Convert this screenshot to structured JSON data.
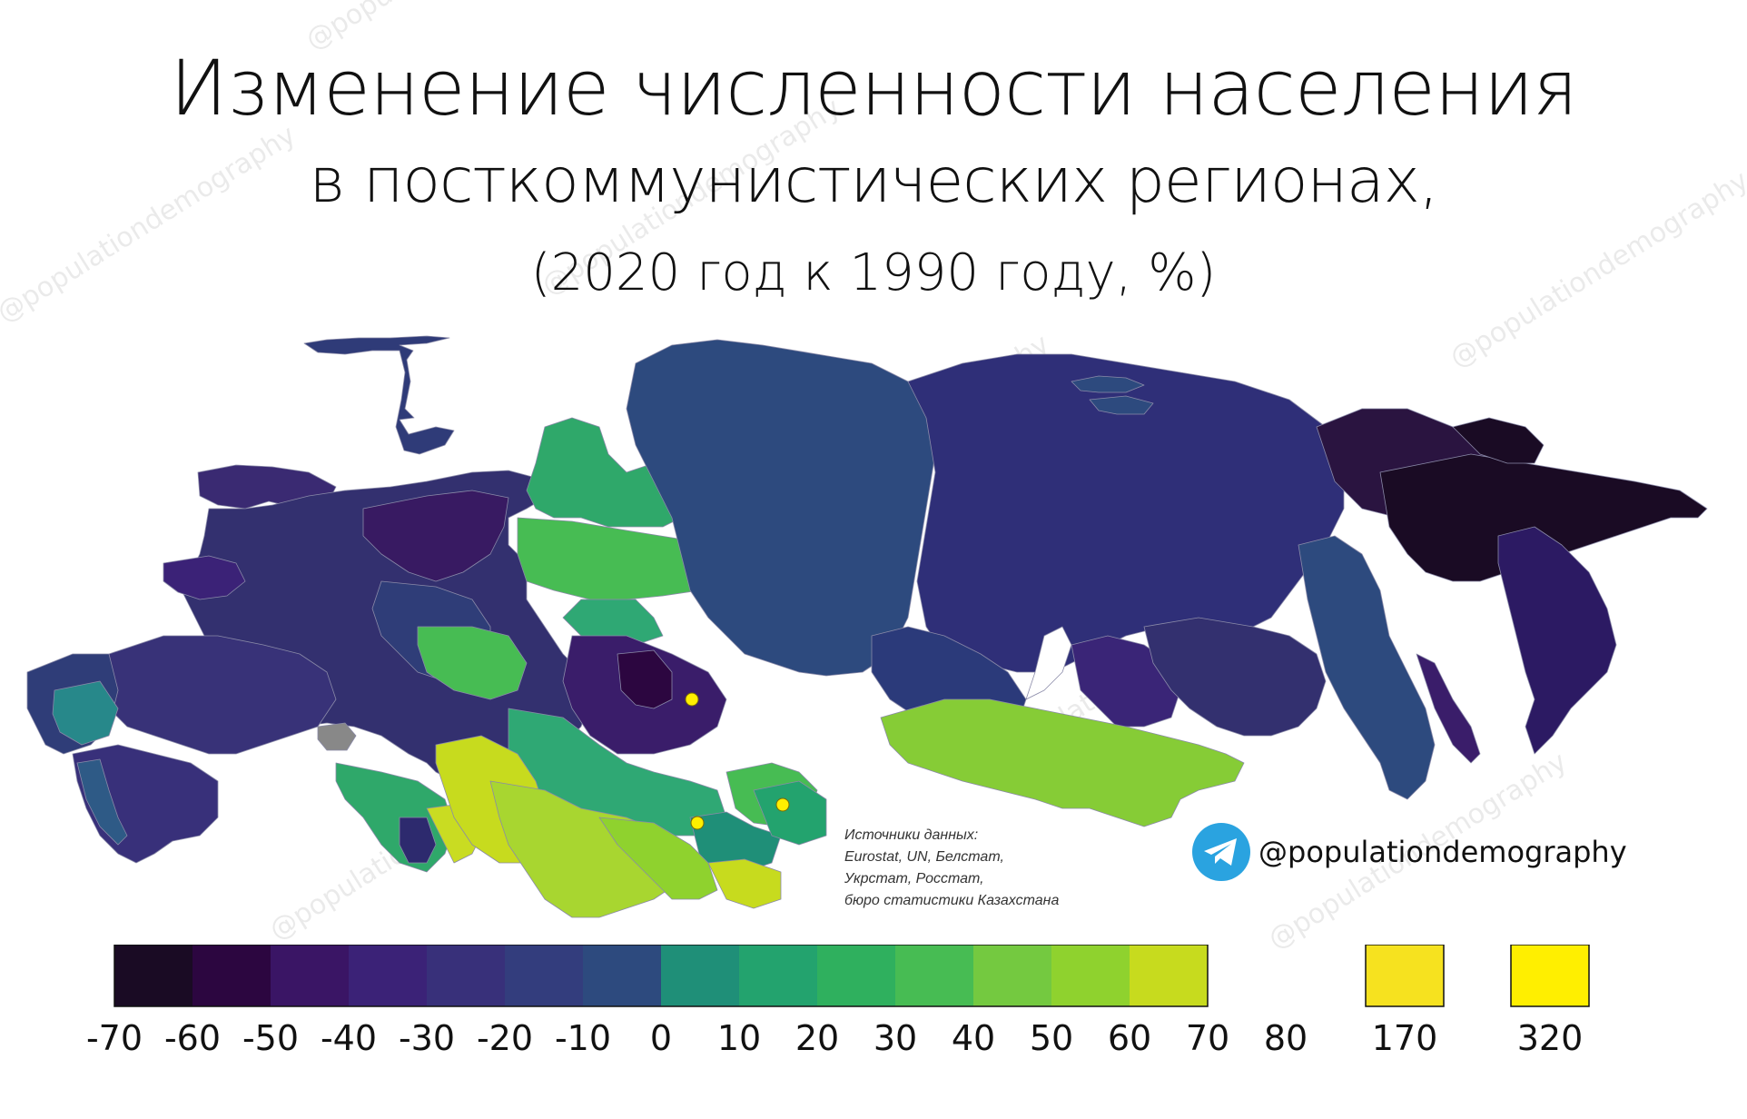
{
  "title": {
    "line1": "Изменение численности населения",
    "line2": "в посткоммунистических регионах,",
    "line3": "(2020 год к 1990 году, %)"
  },
  "sources": {
    "heading": "Источники данных:",
    "line1": "Eurostat, UN, Белстат,",
    "line2": "Укрстат, Росстат,",
    "line3": "бюро статистики Казахстана"
  },
  "brand": {
    "icon": "telegram-icon",
    "handle": "@populationdemography"
  },
  "watermark_text": "@populationdemography",
  "legend": {
    "ticks": [
      "-70",
      "-60",
      "-50",
      "-40",
      "-30",
      "-20",
      "-10",
      "0",
      "10",
      "20",
      "30",
      "40",
      "50",
      "60",
      "70",
      "80"
    ],
    "colors": [
      "#1a0b24",
      "#2c0640",
      "#3a1565",
      "#3b2277",
      "#38307a",
      "#333d7d",
      "#2d4a7e",
      "#1f8f78",
      "#23a36e",
      "#2fb05e",
      "#47bc53",
      "#74c940",
      "#8fd22e",
      "#c7db1e"
    ],
    "extra": [
      {
        "label": "170",
        "color": "#f6e21f"
      },
      {
        "label": "320",
        "color": "#ffef00"
      }
    ],
    "no_data_color": "#888888"
  },
  "map_colors": {
    "chukotka": "#1a0b24",
    "far_east": "#38307a",
    "siberia": "#2f3b78",
    "central_russia": "#3a2a72",
    "yamal_khanty": "#2fa86a",
    "kazakhstan_north": "#3a1d6a",
    "kazakhstan_south": "#2fa874",
    "turkmenistan": "#9bd42a",
    "uzbekistan": "#a8d630",
    "tajikistan": "#2aa97a",
    "mongolia": "#86cc36",
    "caucasus_azerbaijan": "#c9dc22",
    "dots": "#ffef00"
  }
}
